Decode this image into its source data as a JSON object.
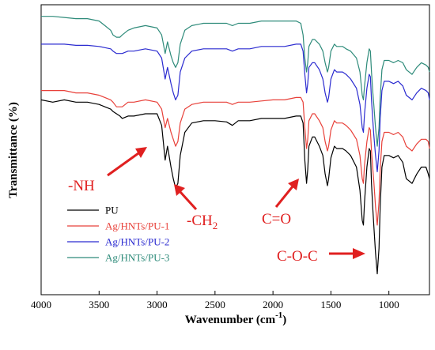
{
  "chart_data": {
    "type": "line",
    "xlabel": "Wavenumber (cm",
    "xlabel_sup": "-1",
    "xlabel_tail": ")",
    "ylabel": "Transmittance (%)",
    "xlim": [
      4000,
      650
    ],
    "x_reversed": true,
    "xticks": [
      4000,
      3500,
      3000,
      2500,
      2000,
      1500,
      1000
    ],
    "xtick_labels": [
      "4000",
      "3500",
      "3000",
      "2500",
      "2000",
      "1500",
      "1000"
    ],
    "yticks_shown": false,
    "grid": false,
    "legend_position": "bottom-left",
    "series": [
      {
        "name": "PU",
        "color": "#000000",
        "x": [
          4000,
          3900,
          3800,
          3700,
          3600,
          3500,
          3450,
          3400,
          3380,
          3350,
          3320,
          3300,
          3250,
          3200,
          3100,
          3000,
          2960,
          2930,
          2910,
          2880,
          2860,
          2840,
          2820,
          2800,
          2760,
          2700,
          2600,
          2500,
          2400,
          2350,
          2300,
          2200,
          2100,
          2000,
          1900,
          1800,
          1760,
          1740,
          1725,
          1710,
          1700,
          1690,
          1660,
          1640,
          1600,
          1570,
          1550,
          1530,
          1520,
          1500,
          1470,
          1450,
          1400,
          1370,
          1330,
          1280,
          1250,
          1230,
          1220,
          1210,
          1190,
          1170,
          1160,
          1150,
          1140,
          1130,
          1115,
          1100,
          1085,
          1075,
          1060,
          1040,
          1000,
          960,
          920,
          880,
          850,
          800,
          760,
          720,
          680,
          660,
          650
        ],
        "y": [
          0.84,
          0.83,
          0.84,
          0.83,
          0.83,
          0.82,
          0.81,
          0.8,
          0.79,
          0.78,
          0.77,
          0.76,
          0.77,
          0.77,
          0.78,
          0.78,
          0.73,
          0.58,
          0.64,
          0.55,
          0.5,
          0.46,
          0.48,
          0.6,
          0.7,
          0.74,
          0.75,
          0.75,
          0.745,
          0.73,
          0.75,
          0.75,
          0.76,
          0.76,
          0.76,
          0.77,
          0.77,
          0.74,
          0.58,
          0.48,
          0.54,
          0.64,
          0.68,
          0.68,
          0.64,
          0.6,
          0.52,
          0.47,
          0.5,
          0.59,
          0.64,
          0.63,
          0.63,
          0.62,
          0.6,
          0.55,
          0.45,
          0.32,
          0.3,
          0.4,
          0.55,
          0.63,
          0.62,
          0.48,
          0.38,
          0.3,
          0.18,
          0.09,
          0.2,
          0.38,
          0.55,
          0.6,
          0.6,
          0.59,
          0.6,
          0.57,
          0.5,
          0.48,
          0.52,
          0.55,
          0.55,
          0.52,
          0.5
        ]
      },
      {
        "name": "Ag/HNTs/PU-1",
        "color": "#e8413a",
        "x": [
          4000,
          3900,
          3800,
          3700,
          3600,
          3500,
          3450,
          3400,
          3380,
          3350,
          3320,
          3300,
          3250,
          3200,
          3100,
          3000,
          2960,
          2930,
          2910,
          2880,
          2860,
          2840,
          2820,
          2800,
          2760,
          2700,
          2600,
          2500,
          2400,
          2350,
          2300,
          2200,
          2100,
          2000,
          1900,
          1800,
          1760,
          1740,
          1725,
          1710,
          1700,
          1690,
          1660,
          1640,
          1600,
          1570,
          1550,
          1530,
          1520,
          1500,
          1470,
          1450,
          1400,
          1370,
          1330,
          1280,
          1250,
          1230,
          1220,
          1210,
          1190,
          1170,
          1160,
          1150,
          1140,
          1130,
          1115,
          1100,
          1085,
          1075,
          1060,
          1040,
          1000,
          960,
          920,
          880,
          850,
          800,
          760,
          720,
          680,
          660,
          650
        ],
        "y": [
          0.88,
          0.88,
          0.88,
          0.87,
          0.87,
          0.86,
          0.85,
          0.84,
          0.83,
          0.81,
          0.81,
          0.81,
          0.83,
          0.83,
          0.84,
          0.83,
          0.8,
          0.72,
          0.76,
          0.7,
          0.67,
          0.64,
          0.66,
          0.74,
          0.8,
          0.82,
          0.83,
          0.83,
          0.83,
          0.82,
          0.83,
          0.83,
          0.835,
          0.84,
          0.84,
          0.85,
          0.85,
          0.83,
          0.72,
          0.63,
          0.67,
          0.75,
          0.78,
          0.78,
          0.75,
          0.72,
          0.66,
          0.62,
          0.64,
          0.71,
          0.75,
          0.74,
          0.74,
          0.73,
          0.71,
          0.67,
          0.6,
          0.5,
          0.48,
          0.56,
          0.66,
          0.72,
          0.71,
          0.62,
          0.55,
          0.49,
          0.38,
          0.3,
          0.4,
          0.54,
          0.66,
          0.7,
          0.7,
          0.69,
          0.7,
          0.68,
          0.64,
          0.62,
          0.65,
          0.67,
          0.67,
          0.66,
          0.63
        ]
      },
      {
        "name": "Ag/HNTs/PU-2",
        "color": "#2b2bd0",
        "x": [
          4000,
          3900,
          3800,
          3700,
          3600,
          3500,
          3450,
          3400,
          3380,
          3350,
          3320,
          3300,
          3250,
          3200,
          3100,
          3000,
          2960,
          2930,
          2910,
          2880,
          2860,
          2840,
          2820,
          2800,
          2760,
          2700,
          2600,
          2500,
          2400,
          2350,
          2300,
          2200,
          2100,
          2000,
          1900,
          1800,
          1760,
          1740,
          1725,
          1710,
          1700,
          1690,
          1660,
          1640,
          1600,
          1570,
          1550,
          1530,
          1520,
          1500,
          1470,
          1450,
          1400,
          1370,
          1330,
          1280,
          1250,
          1230,
          1220,
          1210,
          1190,
          1170,
          1160,
          1150,
          1140,
          1130,
          1115,
          1100,
          1085,
          1075,
          1060,
          1040,
          1000,
          960,
          920,
          880,
          850,
          800,
          760,
          720,
          680,
          660,
          650
        ],
        "y": [
          1.08,
          1.08,
          1.08,
          1.075,
          1.075,
          1.07,
          1.065,
          1.06,
          1.05,
          1.04,
          1.04,
          1.04,
          1.05,
          1.05,
          1.06,
          1.05,
          1.02,
          0.93,
          0.98,
          0.91,
          0.87,
          0.84,
          0.86,
          0.96,
          1.02,
          1.05,
          1.06,
          1.06,
          1.06,
          1.05,
          1.06,
          1.06,
          1.07,
          1.07,
          1.07,
          1.08,
          1.08,
          1.05,
          0.95,
          0.87,
          0.91,
          0.98,
          1.0,
          1.0,
          0.97,
          0.93,
          0.87,
          0.83,
          0.85,
          0.93,
          0.97,
          0.96,
          0.96,
          0.95,
          0.93,
          0.89,
          0.82,
          0.72,
          0.7,
          0.78,
          0.89,
          0.95,
          0.94,
          0.84,
          0.76,
          0.69,
          0.6,
          0.53,
          0.62,
          0.76,
          0.88,
          0.92,
          0.92,
          0.91,
          0.92,
          0.9,
          0.86,
          0.84,
          0.87,
          0.89,
          0.88,
          0.87,
          0.84
        ]
      },
      {
        "name": "Ag/HNTs/PU-3",
        "color": "#2e8b7a",
        "x": [
          4000,
          3900,
          3800,
          3700,
          3600,
          3500,
          3450,
          3400,
          3380,
          3350,
          3320,
          3300,
          3250,
          3200,
          3100,
          3000,
          2960,
          2930,
          2910,
          2880,
          2860,
          2840,
          2820,
          2800,
          2760,
          2700,
          2600,
          2500,
          2400,
          2350,
          2300,
          2200,
          2100,
          2000,
          1900,
          1800,
          1760,
          1740,
          1725,
          1710,
          1700,
          1690,
          1660,
          1640,
          1600,
          1570,
          1550,
          1530,
          1520,
          1500,
          1470,
          1450,
          1400,
          1370,
          1330,
          1280,
          1250,
          1230,
          1220,
          1210,
          1190,
          1170,
          1160,
          1150,
          1140,
          1130,
          1115,
          1100,
          1085,
          1075,
          1060,
          1040,
          1000,
          960,
          920,
          880,
          850,
          800,
          760,
          720,
          680,
          660,
          650
        ],
        "y": [
          1.2,
          1.2,
          1.195,
          1.19,
          1.19,
          1.18,
          1.16,
          1.14,
          1.12,
          1.11,
          1.11,
          1.12,
          1.14,
          1.15,
          1.16,
          1.15,
          1.12,
          1.04,
          1.09,
          1.03,
          1.0,
          0.98,
          1.0,
          1.08,
          1.14,
          1.16,
          1.17,
          1.17,
          1.17,
          1.16,
          1.17,
          1.17,
          1.18,
          1.18,
          1.18,
          1.18,
          1.17,
          1.12,
          1.02,
          0.96,
          1.0,
          1.07,
          1.1,
          1.1,
          1.08,
          1.05,
          1.0,
          0.96,
          0.98,
          1.05,
          1.08,
          1.07,
          1.07,
          1.06,
          1.05,
          1.02,
          0.96,
          0.86,
          0.84,
          0.9,
          1.0,
          1.06,
          1.05,
          0.96,
          0.88,
          0.82,
          0.72,
          0.64,
          0.72,
          0.85,
          0.97,
          1.01,
          1.01,
          1.0,
          1.01,
          1.0,
          0.97,
          0.95,
          0.98,
          1.0,
          0.99,
          0.98,
          0.96
        ]
      }
    ],
    "annotations": [
      {
        "text": "-NH",
        "type": "plain"
      },
      {
        "text": "-CH",
        "sub": "2",
        "type": "sub"
      },
      {
        "text": "C=O",
        "type": "plain"
      },
      {
        "text": "C-O-C",
        "type": "plain"
      }
    ]
  }
}
